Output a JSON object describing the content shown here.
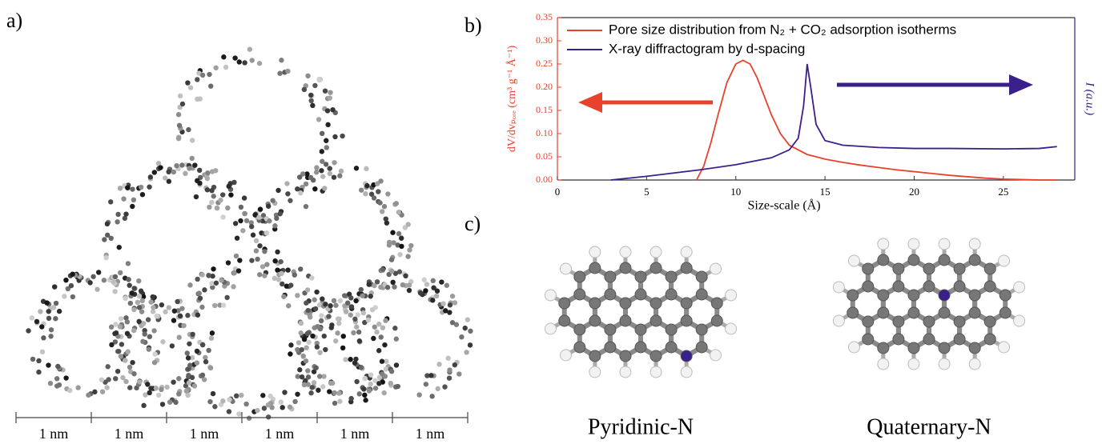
{
  "panels": {
    "a": {
      "label": "a)",
      "scale_bar": [
        "1 nm",
        "1 nm",
        "1 nm",
        "1 nm",
        "1 nm",
        "1 nm"
      ]
    },
    "b": {
      "label": "b)"
    },
    "c": {
      "label": "c)",
      "structures": [
        "Pyridinic-N",
        "Quaternary-N"
      ]
    }
  },
  "chart_data": {
    "type": "line",
    "xlabel": "Size-scale (Å)",
    "ylabel": "dV/dvₚₒᵣₑ (cm³ g⁻¹ Å⁻¹)",
    "y2label": "I (a.u.)",
    "xlim": [
      0,
      29
    ],
    "xticks": [
      0,
      5,
      10,
      15,
      20,
      25
    ],
    "ylim": [
      0,
      0.35
    ],
    "yticks": [
      {
        "value": 0,
        "label": "0.00"
      },
      {
        "value": 0.05,
        "label": "0.05"
      },
      {
        "value": 0.1,
        "label": "0.10"
      },
      {
        "value": 0.15,
        "label": "0.15"
      },
      {
        "value": 0.2,
        "label": "0.20"
      },
      {
        "value": 0.25,
        "label": "0.25"
      },
      {
        "value": 0.3,
        "label": "0.30"
      },
      {
        "value": 0.35,
        "label": "0.35"
      }
    ],
    "legend": "upper left",
    "series": [
      {
        "name": "Pore size distribution from N₂ + CO₂ adsorption isotherms",
        "color": "#e8412c",
        "x": [
          7.8,
          8.2,
          8.6,
          9,
          9.5,
          10,
          10.4,
          10.8,
          11.2,
          11.6,
          12,
          12.5,
          13,
          14,
          15,
          16,
          17,
          18,
          19,
          20,
          21,
          22,
          23,
          24,
          25,
          26,
          27,
          28
        ],
        "values": [
          0,
          0.03,
          0.08,
          0.14,
          0.21,
          0.25,
          0.258,
          0.25,
          0.22,
          0.18,
          0.14,
          0.1,
          0.075,
          0.055,
          0.045,
          0.038,
          0.032,
          0.027,
          0.022,
          0.018,
          0.014,
          0.01,
          0.007,
          0.004,
          0.002,
          0.001,
          0,
          0
        ]
      },
      {
        "name": "X-ray diffractogram by d-spacing",
        "color": "#3b1f8a",
        "x": [
          3,
          5,
          8,
          10,
          12,
          13,
          13.5,
          13.8,
          14,
          14.2,
          14.5,
          15,
          16,
          18,
          20,
          22,
          25,
          27,
          28
        ],
        "values": [
          0,
          0.008,
          0.022,
          0.033,
          0.048,
          0.065,
          0.09,
          0.16,
          0.25,
          0.2,
          0.12,
          0.085,
          0.075,
          0.07,
          0.068,
          0.068,
          0.067,
          0.068,
          0.072
        ]
      }
    ]
  }
}
